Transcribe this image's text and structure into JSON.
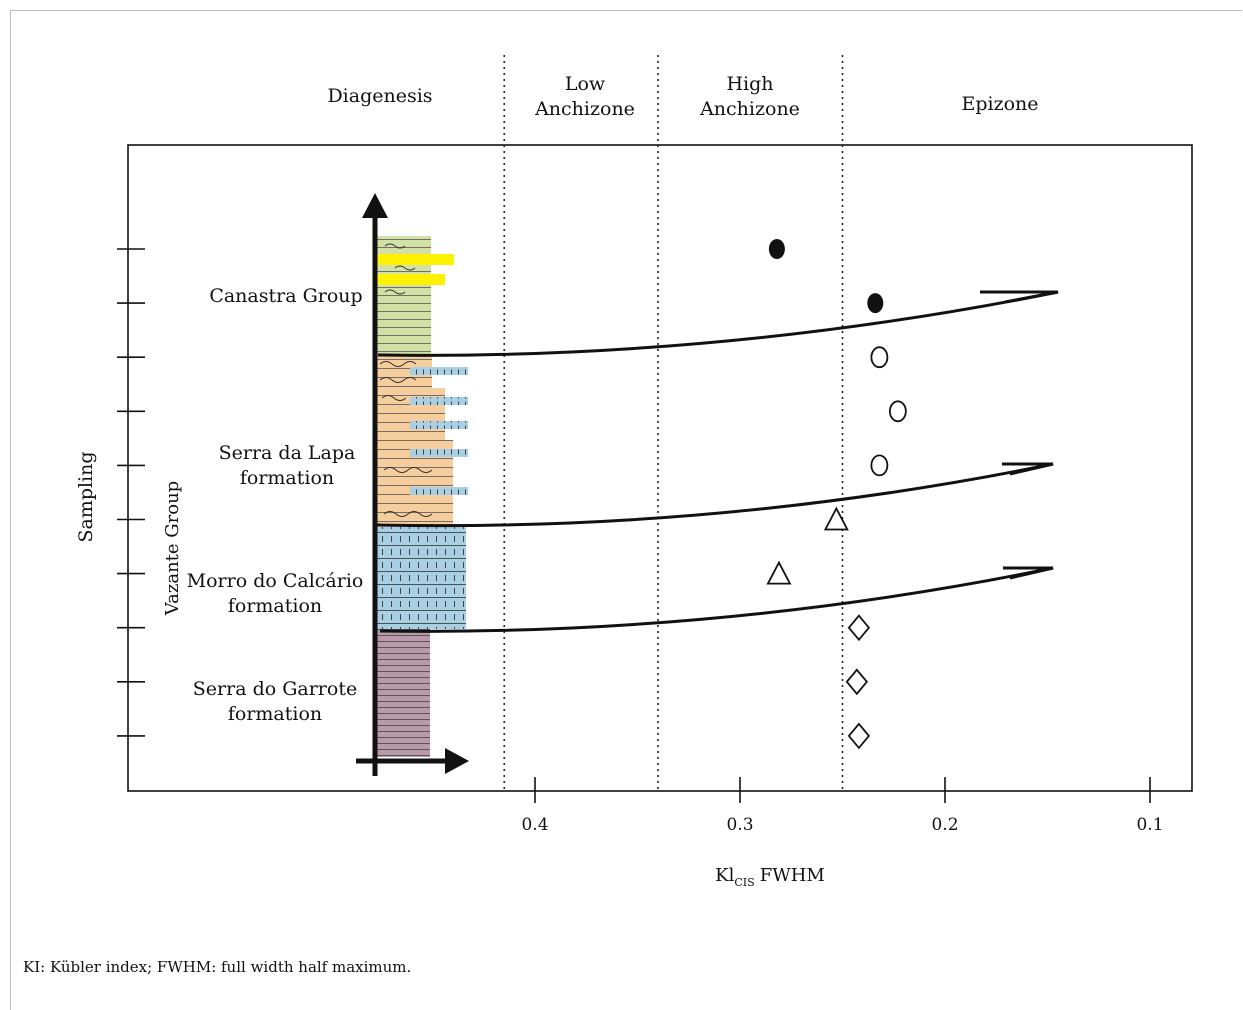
{
  "caption": "KI: Kübler index; FWHM: full width half maximum.",
  "chart_data": {
    "type": "scatter",
    "title": "",
    "xlabel": {
      "main": "Kl",
      "sub": "CIS",
      "suffix": "FWHM"
    },
    "ylabel": "Sampling",
    "xlim": [
      0.5,
      0.08
    ],
    "x_ticks": [
      {
        "value": 0.4,
        "label": "0.4"
      },
      {
        "value": 0.3,
        "label": "0.3"
      },
      {
        "value": 0.2,
        "label": "0.2"
      },
      {
        "value": 0.1,
        "label": "0.1"
      }
    ],
    "zones": [
      {
        "name": "Diagenesis",
        "lines": [
          "Diagenesis"
        ]
      },
      {
        "name": "Low Anchizone",
        "lines": [
          "Low",
          "Anchizone"
        ]
      },
      {
        "name": "High Anchizone",
        "lines": [
          "High",
          "Anchizone"
        ]
      },
      {
        "name": "Epizone",
        "lines": [
          "Epizone"
        ]
      }
    ],
    "zone_boundaries": [
      0.415,
      0.34,
      0.25
    ],
    "group_label": "Vazante Group",
    "units": [
      {
        "name": "Canastra Group",
        "lines": [
          "Canastra Group"
        ]
      },
      {
        "name": "Serra da Lapa formation",
        "lines": [
          "Serra da Lapa",
          "formation"
        ]
      },
      {
        "name": "Morro do Calcário formation",
        "lines": [
          "Morro do Calcário",
          "formation"
        ]
      },
      {
        "name": "Serra do Garrote formation",
        "lines": [
          "Serra do Garrote",
          "formation"
        ]
      }
    ],
    "sampling_levels": 10,
    "series": [
      {
        "marker": "filled-circle",
        "unit": "Canastra Group",
        "points": [
          {
            "level": 1,
            "x": 0.282
          },
          {
            "level": 2,
            "x": 0.234
          }
        ]
      },
      {
        "marker": "open-circle",
        "unit": "Serra da Lapa formation",
        "points": [
          {
            "level": 3,
            "x": 0.232
          },
          {
            "level": 4,
            "x": 0.223
          },
          {
            "level": 5,
            "x": 0.232
          }
        ]
      },
      {
        "marker": "open-triangle",
        "unit": "Morro do Calcário formation",
        "points": [
          {
            "level": 6,
            "x": 0.253
          },
          {
            "level": 7,
            "x": 0.281
          }
        ]
      },
      {
        "marker": "open-diamond",
        "unit": "Serra do Garrote formation",
        "points": [
          {
            "level": 8,
            "x": 0.242
          },
          {
            "level": 9,
            "x": 0.243
          },
          {
            "level": 10,
            "x": 0.242
          }
        ]
      }
    ],
    "grid": false,
    "legend": "none",
    "colors": {
      "canastra": "#d3e0a6",
      "highlight": "#fff200",
      "serra_da_lapa": "#f6cd9c",
      "morro_do_calcario": "#a8cfe3",
      "serra_do_garrote": "#b99aa8"
    }
  }
}
